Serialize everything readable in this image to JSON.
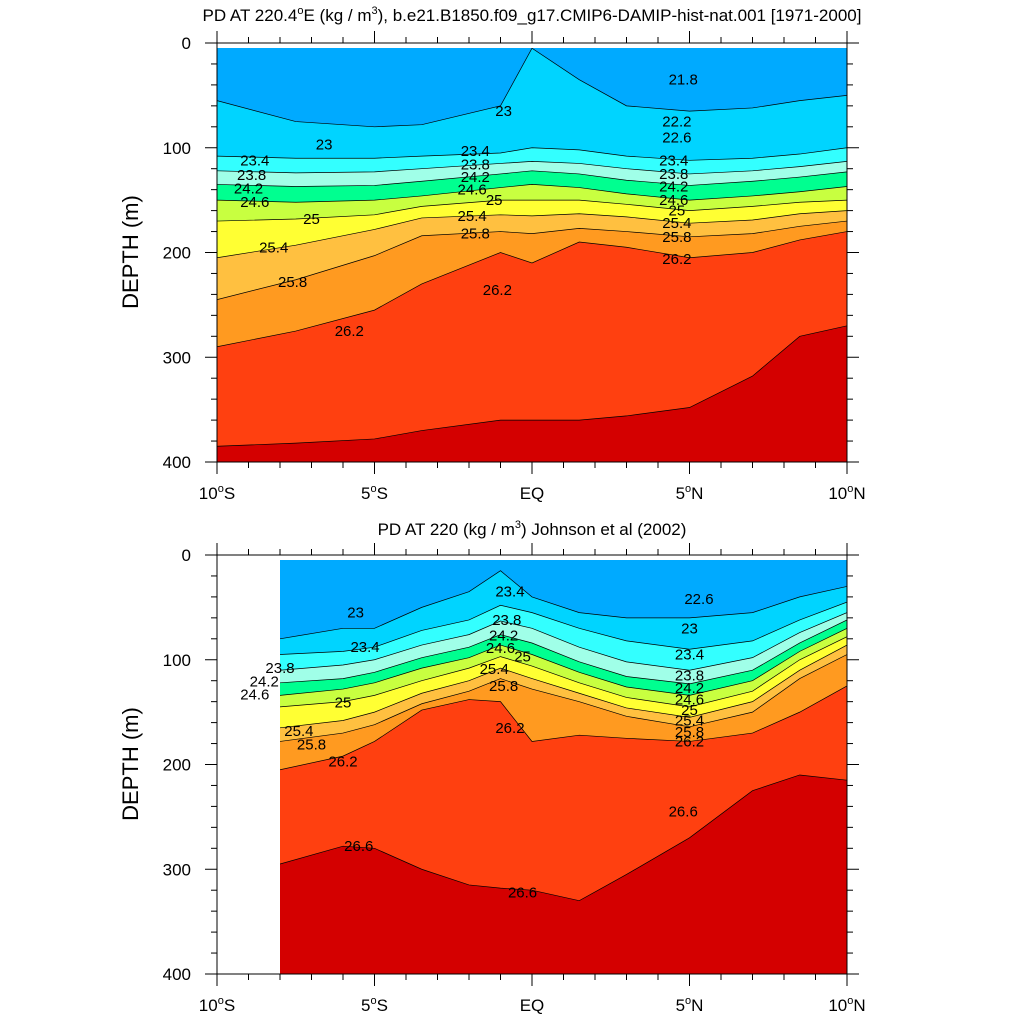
{
  "chart_data": [
    {
      "type": "contour",
      "title": "PD AT 220.4ºE (kg / m³), b.e21.B1850.f09_g17.CMIP6-DAMIP-hist-nat.001 [1971-2000]",
      "title_parts": {
        "pre": "PD AT 220.4",
        "deg": "o",
        "mid": "E (kg / m",
        "sup": "3",
        "post": "), b.e21.B1850.f09_g17.CMIP6-DAMIP-hist-nat.001 [1971-2000]"
      },
      "ylabel": "DEPTH (m)",
      "xlim": [
        -10,
        10
      ],
      "ylim": [
        400,
        0
      ],
      "x_ticks": [
        {
          "value": -10,
          "num": "10",
          "deg": "o",
          "dir": "S"
        },
        {
          "value": -5,
          "num": "5",
          "deg": "o",
          "dir": "S"
        },
        {
          "value": 0,
          "num": "EQ",
          "deg": "",
          "dir": ""
        },
        {
          "value": 5,
          "num": "5",
          "deg": "o",
          "dir": "N"
        },
        {
          "value": 10,
          "num": "10",
          "deg": "o",
          "dir": "N"
        }
      ],
      "y_ticks": [
        {
          "value": 0,
          "label": "0"
        },
        {
          "value": 100,
          "label": "100"
        },
        {
          "value": 200,
          "label": "200"
        },
        {
          "value": 300,
          "label": "300"
        },
        {
          "value": 400,
          "label": "400"
        }
      ],
      "data_x_range": [
        -10,
        10
      ],
      "x_nodes": [
        -10,
        -7.5,
        -5,
        -3.5,
        -1,
        0,
        1.5,
        3,
        5,
        7,
        8.5,
        10
      ],
      "contour_levels": [
        {
          "level": 23.0,
          "depth": [
            55,
            75,
            80,
            78,
            60,
            5,
            35,
            60,
            65,
            62,
            55,
            50
          ]
        },
        {
          "level": 23.4,
          "depth": [
            108,
            110,
            110,
            108,
            105,
            100,
            102,
            108,
            112,
            110,
            106,
            100
          ]
        },
        {
          "level": 23.8,
          "depth": [
            122,
            124,
            123,
            120,
            115,
            113,
            115,
            120,
            125,
            122,
            118,
            113
          ]
        },
        {
          "level": 24.2,
          "depth": [
            135,
            137,
            136,
            132,
            125,
            122,
            125,
            131,
            136,
            132,
            128,
            123
          ]
        },
        {
          "level": 24.6,
          "depth": [
            150,
            152,
            150,
            146,
            138,
            135,
            138,
            144,
            150,
            146,
            142,
            137
          ]
        },
        {
          "level": 25.0,
          "depth": [
            170,
            168,
            164,
            156,
            150,
            150,
            150,
            154,
            160,
            156,
            152,
            150
          ]
        },
        {
          "level": 25.4,
          "depth": [
            205,
            193,
            178,
            167,
            164,
            165,
            163,
            166,
            172,
            169,
            163,
            160
          ]
        },
        {
          "level": 25.8,
          "depth": [
            245,
            226,
            203,
            184,
            180,
            182,
            177,
            180,
            185,
            182,
            175,
            170
          ]
        },
        {
          "level": 26.2,
          "depth": [
            290,
            275,
            255,
            230,
            200,
            210,
            190,
            195,
            205,
            200,
            188,
            180
          ]
        },
        {
          "level": 26.6,
          "depth": [
            385,
            382,
            378,
            370,
            360,
            360,
            360,
            356,
            348,
            318,
            280,
            270
          ]
        }
      ],
      "contour_labels": [
        {
          "level": "21.8",
          "x": 4.8,
          "depth": 35
        },
        {
          "level": "22.2",
          "x": 4.6,
          "depth": 75
        },
        {
          "level": "22.6",
          "x": 4.6,
          "depth": 90
        },
        {
          "level": "23",
          "x": -6.6,
          "depth": 97
        },
        {
          "level": "23",
          "x": -0.9,
          "depth": 65
        },
        {
          "level": "23.4",
          "x": -8.8,
          "depth": 112
        },
        {
          "level": "23.4",
          "x": -1.8,
          "depth": 103
        },
        {
          "level": "23.4",
          "x": 4.5,
          "depth": 112
        },
        {
          "level": "23.8",
          "x": -8.9,
          "depth": 126
        },
        {
          "level": "23.8",
          "x": -1.8,
          "depth": 116
        },
        {
          "level": "23.8",
          "x": 4.5,
          "depth": 125
        },
        {
          "level": "24.2",
          "x": -9.0,
          "depth": 139
        },
        {
          "level": "24.2",
          "x": -1.8,
          "depth": 128
        },
        {
          "level": "24.2",
          "x": 4.5,
          "depth": 137
        },
        {
          "level": "24.6",
          "x": -8.8,
          "depth": 152
        },
        {
          "level": "24.6",
          "x": -1.9,
          "depth": 140
        },
        {
          "level": "24.6",
          "x": 4.5,
          "depth": 150
        },
        {
          "level": "25",
          "x": -7.0,
          "depth": 168
        },
        {
          "level": "25",
          "x": -1.2,
          "depth": 150
        },
        {
          "level": "25",
          "x": 4.6,
          "depth": 160
        },
        {
          "level": "25.4",
          "x": -8.2,
          "depth": 195
        },
        {
          "level": "25.4",
          "x": -1.9,
          "depth": 165
        },
        {
          "level": "25.4",
          "x": 4.6,
          "depth": 172
        },
        {
          "level": "25.8",
          "x": -7.6,
          "depth": 228
        },
        {
          "level": "25.8",
          "x": -1.8,
          "depth": 182
        },
        {
          "level": "25.8",
          "x": 4.6,
          "depth": 185
        },
        {
          "level": "26.2",
          "x": -5.8,
          "depth": 275
        },
        {
          "level": "26.2",
          "x": -1.1,
          "depth": 236
        },
        {
          "level": "26.2",
          "x": 4.6,
          "depth": 206
        }
      ]
    },
    {
      "type": "contour",
      "title": "PD AT 220 (kg / m³) Johnson et al (2002)",
      "title_parts": {
        "pre": "PD AT 220 (kg / m",
        "deg": "",
        "mid": "",
        "sup": "3",
        "post": ") Johnson et al (2002)"
      },
      "ylabel": "DEPTH (m)",
      "xlim": [
        -10,
        10
      ],
      "ylim": [
        400,
        0
      ],
      "x_ticks": [
        {
          "value": -10,
          "num": "10",
          "deg": "o",
          "dir": "S"
        },
        {
          "value": -5,
          "num": "5",
          "deg": "o",
          "dir": "S"
        },
        {
          "value": 0,
          "num": "EQ",
          "deg": "",
          "dir": ""
        },
        {
          "value": 5,
          "num": "5",
          "deg": "o",
          "dir": "N"
        },
        {
          "value": 10,
          "num": "10",
          "deg": "o",
          "dir": "N"
        }
      ],
      "y_ticks": [
        {
          "value": 0,
          "label": "0"
        },
        {
          "value": 100,
          "label": "100"
        },
        {
          "value": 200,
          "label": "200"
        },
        {
          "value": 300,
          "label": "300"
        },
        {
          "value": 400,
          "label": "400"
        }
      ],
      "data_x_range": [
        -8,
        10
      ],
      "x_nodes": [
        -8,
        -6,
        -5,
        -3.5,
        -2,
        -1,
        0,
        1.5,
        3,
        5,
        7,
        8.5,
        10
      ],
      "contour_levels": [
        {
          "level": 23.0,
          "depth": [
            80,
            70,
            70,
            50,
            35,
            15,
            40,
            55,
            60,
            60,
            55,
            40,
            30
          ]
        },
        {
          "level": 23.4,
          "depth": [
            95,
            92,
            88,
            72,
            62,
            48,
            55,
            70,
            82,
            90,
            82,
            62,
            45
          ]
        },
        {
          "level": 23.8,
          "depth": [
            110,
            105,
            100,
            86,
            76,
            63,
            70,
            88,
            102,
            110,
            98,
            74,
            55
          ]
        },
        {
          "level": 24.2,
          "depth": [
            122,
            118,
            112,
            98,
            88,
            76,
            84,
            102,
            116,
            123,
            110,
            84,
            62
          ]
        },
        {
          "level": 24.6,
          "depth": [
            134,
            128,
            122,
            108,
            98,
            86,
            95,
            112,
            126,
            134,
            120,
            92,
            70
          ]
        },
        {
          "level": 25.0,
          "depth": [
            145,
            140,
            134,
            120,
            108,
            97,
            106,
            122,
            136,
            145,
            130,
            100,
            78
          ]
        },
        {
          "level": 25.4,
          "depth": [
            165,
            158,
            150,
            132,
            120,
            108,
            118,
            132,
            146,
            155,
            140,
            110,
            86
          ]
        },
        {
          "level": 25.8,
          "depth": [
            178,
            170,
            162,
            142,
            130,
            118,
            128,
            140,
            154,
            164,
            150,
            118,
            95
          ]
        },
        {
          "level": 26.2,
          "depth": [
            205,
            192,
            178,
            148,
            138,
            140,
            178,
            172,
            175,
            178,
            170,
            150,
            125
          ]
        },
        {
          "level": 26.6,
          "depth": [
            295,
            278,
            280,
            300,
            315,
            318,
            320,
            330,
            305,
            270,
            225,
            210,
            215
          ]
        }
      ],
      "contour_labels": [
        {
          "level": "23",
          "x": -5.6,
          "depth": 55
        },
        {
          "level": "23",
          "x": 5.0,
          "depth": 70
        },
        {
          "level": "23.4",
          "x": -5.3,
          "depth": 88
        },
        {
          "level": "23.4",
          "x": -0.7,
          "depth": 35
        },
        {
          "level": "23.4",
          "x": 5.0,
          "depth": 95
        },
        {
          "level": "22.6",
          "x": 5.3,
          "depth": 42
        },
        {
          "level": "23.8",
          "x": -8.0,
          "depth": 108
        },
        {
          "level": "23.8",
          "x": -0.8,
          "depth": 62
        },
        {
          "level": "23.8",
          "x": 5.0,
          "depth": 115
        },
        {
          "level": "24.2",
          "x": -8.5,
          "depth": 121
        },
        {
          "level": "24.2",
          "x": -0.9,
          "depth": 77
        },
        {
          "level": "24.2",
          "x": 5.0,
          "depth": 127
        },
        {
          "level": "24.6",
          "x": -8.8,
          "depth": 133
        },
        {
          "level": "24.6",
          "x": -1.0,
          "depth": 89
        },
        {
          "level": "24.6",
          "x": 5.0,
          "depth": 138
        },
        {
          "level": "25",
          "x": -6.0,
          "depth": 141
        },
        {
          "level": "25",
          "x": -0.3,
          "depth": 97
        },
        {
          "level": "25",
          "x": 5.0,
          "depth": 148
        },
        {
          "level": "25.4",
          "x": -7.4,
          "depth": 168
        },
        {
          "level": "25.4",
          "x": -1.2,
          "depth": 109
        },
        {
          "level": "25.4",
          "x": 5.0,
          "depth": 158
        },
        {
          "level": "25.8",
          "x": -7.0,
          "depth": 181
        },
        {
          "level": "25.8",
          "x": -0.9,
          "depth": 125
        },
        {
          "level": "25.8",
          "x": 5.0,
          "depth": 169
        },
        {
          "level": "26.2",
          "x": -6.0,
          "depth": 197
        },
        {
          "level": "26.2",
          "x": -0.7,
          "depth": 165
        },
        {
          "level": "26.2",
          "x": 5.0,
          "depth": 178
        },
        {
          "level": "26.6",
          "x": -5.5,
          "depth": 278
        },
        {
          "level": "26.6",
          "x": -0.3,
          "depth": 322
        },
        {
          "level": "26.6",
          "x": 4.8,
          "depth": 245
        }
      ]
    }
  ]
}
